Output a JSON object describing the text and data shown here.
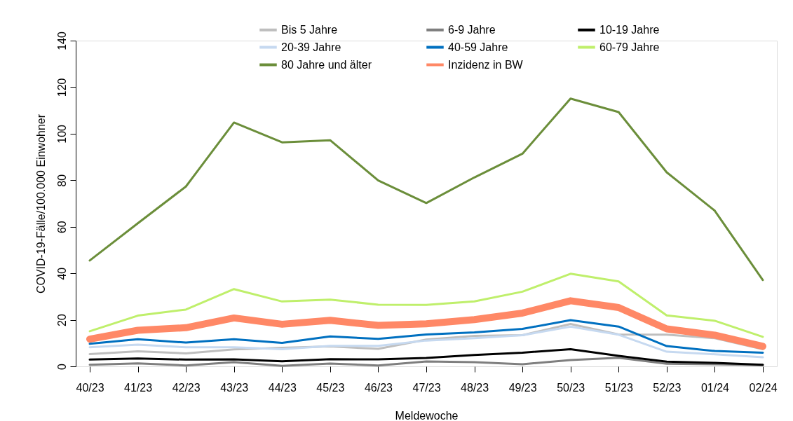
{
  "chart_data": {
    "type": "line",
    "xlabel": "Meldewoche",
    "ylabel": "COVID-19-Fälle/100.000 Einwohner",
    "categories": [
      "40/23",
      "41/23",
      "42/23",
      "43/23",
      "44/23",
      "45/23",
      "46/23",
      "47/23",
      "48/23",
      "49/23",
      "50/23",
      "51/23",
      "52/23",
      "01/24",
      "02/24"
    ],
    "series": [
      {
        "name": "Bis 5 Jahre",
        "color": "#bebebe",
        "values": [
          5.3,
          6.5,
          5.6,
          7.3,
          8.0,
          8.6,
          7.5,
          11.5,
          13.1,
          13.4,
          18.2,
          13.7,
          13.6,
          12.1,
          7.4
        ]
      },
      {
        "name": "6-9 Jahre",
        "color": "#7f7f7f",
        "values": [
          0.7,
          1.3,
          0.4,
          1.8,
          0.2,
          1.2,
          0.4,
          2.1,
          1.8,
          0.9,
          2.7,
          3.7,
          1.1,
          0.9,
          0.5
        ]
      },
      {
        "name": "10-19 Jahre",
        "color": "#000000",
        "values": [
          2.9,
          3.4,
          2.9,
          3.0,
          2.2,
          3.1,
          3.0,
          3.6,
          4.9,
          5.9,
          7.4,
          4.5,
          2.0,
          1.5,
          0.7
        ]
      },
      {
        "name": "20-39 Jahre",
        "color": "#c6d9f0",
        "values": [
          8.2,
          9.3,
          8.2,
          8.2,
          7.4,
          8.8,
          8.8,
          11.1,
          12.1,
          13.4,
          17.1,
          13.6,
          6.3,
          5.2,
          3.9
        ]
      },
      {
        "name": "40-59 Jahre",
        "color": "#0070c0",
        "values": [
          9.7,
          11.7,
          10.2,
          11.7,
          10.1,
          12.9,
          11.8,
          13.7,
          14.6,
          16.1,
          19.9,
          17.1,
          8.7,
          6.6,
          5.9
        ]
      },
      {
        "name": "60-79 Jahre",
        "color": "#bfef6b",
        "values": [
          15.1,
          21.8,
          24.4,
          33.2,
          27.9,
          28.7,
          26.5,
          26.4,
          27.9,
          32.1,
          39.8,
          36.5,
          21.9,
          19.6,
          12.7
        ]
      },
      {
        "name": "80 Jahre und älter",
        "color": "#6b8e3a",
        "values": [
          45.5,
          61.5,
          77.3,
          104.8,
          96.3,
          97.2,
          79.9,
          70.2,
          81.2,
          91.4,
          115.1,
          109.3,
          83.4,
          66.9,
          37.1
        ]
      },
      {
        "name": "Inzidenz in BW",
        "color": "#ff8866",
        "values": [
          11.7,
          15.5,
          16.6,
          20.8,
          18.1,
          19.8,
          17.6,
          18.3,
          20.1,
          22.9,
          28.2,
          25.3,
          16.1,
          13.4,
          8.6
        ]
      }
    ],
    "ylim": [
      0,
      140
    ],
    "yticks": [
      0,
      20,
      40,
      60,
      80,
      100,
      120,
      140
    ],
    "grid": false,
    "legend": "top",
    "marker": "none",
    "line_style": "solid"
  }
}
